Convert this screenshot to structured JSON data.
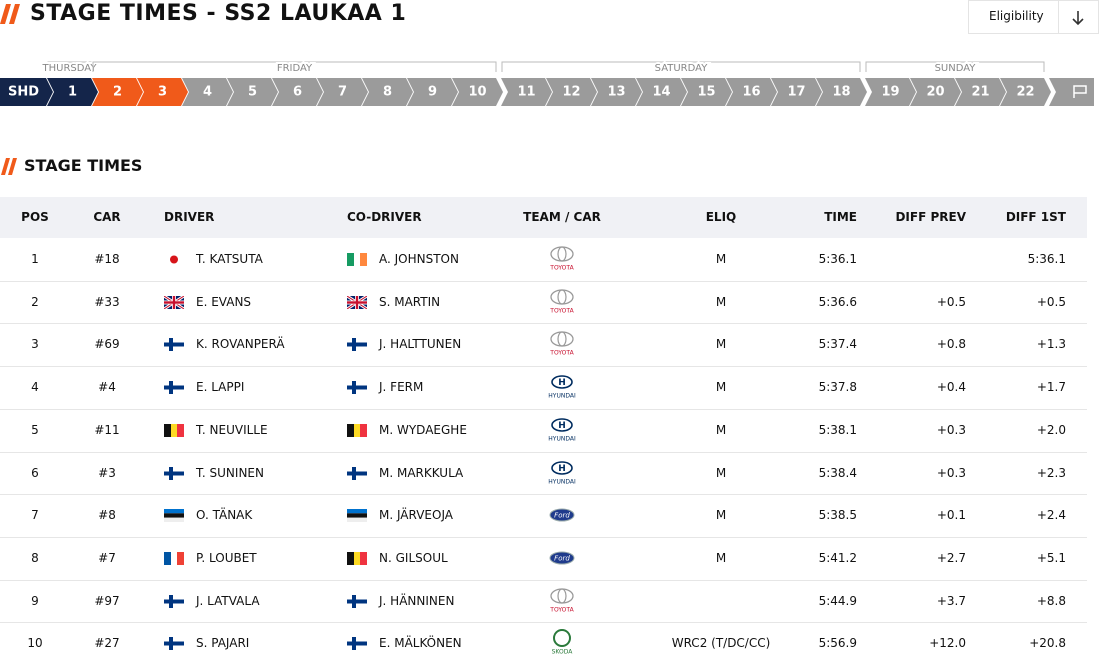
{
  "header": {
    "title": "STAGE TIMES - SS2 LAUKAA 1",
    "filter": "Eligibility"
  },
  "stages": {
    "days": [
      "THURSDAY",
      "FRIDAY",
      "SATURDAY",
      "SUNDAY"
    ],
    "items": [
      "SHD",
      "1",
      "2",
      "3",
      "4",
      "5",
      "6",
      "7",
      "8",
      "9",
      "10",
      "11",
      "12",
      "13",
      "14",
      "15",
      "16",
      "17",
      "18",
      "19",
      "20",
      "21",
      "22"
    ]
  },
  "section": {
    "title": "STAGE TIMES"
  },
  "table": {
    "columns": [
      "POS",
      "CAR",
      "DRIVER",
      "CO-DRIVER",
      "TEAM / CAR",
      "ELIQ",
      "TIME",
      "DIFF PREV",
      "DIFF 1ST"
    ],
    "rows": [
      [
        "1",
        "#18",
        "T. KATSUTA",
        "A. JOHNSTON",
        "TOYOTA",
        "M",
        "5:36.1",
        null,
        "5:36.1"
      ],
      [
        "2",
        "#33",
        "E. EVANS",
        "S. MARTIN",
        "TOYOTA",
        "M",
        "5:36.6",
        "+0.5",
        "+0.5"
      ],
      [
        "3",
        "#69",
        "K. ROVANPERÄ",
        "J. HALTTUNEN",
        "TOYOTA",
        "M",
        "5:37.4",
        "+0.8",
        "+1.3"
      ],
      [
        "4",
        "#4",
        "E. LAPPI",
        "J. FERM",
        "HYUNDAI",
        "M",
        "5:37.8",
        "+0.4",
        "+1.7"
      ],
      [
        "5",
        "#11",
        "T. NEUVILLE",
        "M. WYDAEGHE",
        "HYUNDAI",
        "M",
        "5:38.1",
        "+0.3",
        "+2.0"
      ],
      [
        "6",
        "#3",
        "T. SUNINEN",
        "M. MARKKULA",
        "HYUNDAI",
        "M",
        "5:38.4",
        "+0.3",
        "+2.3"
      ],
      [
        "7",
        "#8",
        "O. TÄNAK",
        "M. JÄRVEOJA",
        "Ford",
        "M",
        "5:38.5",
        "+0.1",
        "+2.4"
      ],
      [
        "8",
        "#7",
        "P. LOUBET",
        "N. GILSOUL",
        "Ford",
        "M",
        "5:41.2",
        "+2.7",
        "+5.1"
      ],
      [
        "9",
        "#97",
        "J. LATVALA",
        "J. HÄNNINEN",
        "TOYOTA",
        null,
        "5:44.9",
        "+3.7",
        "+8.8"
      ],
      [
        "10",
        "#27",
        "S. PAJARI",
        "E. MÄLKÖNEN",
        "SKODA",
        "WRC2 (T/DC/CC)",
        "5:56.9",
        "+12.0",
        "+20.8"
      ]
    ]
  }
}
